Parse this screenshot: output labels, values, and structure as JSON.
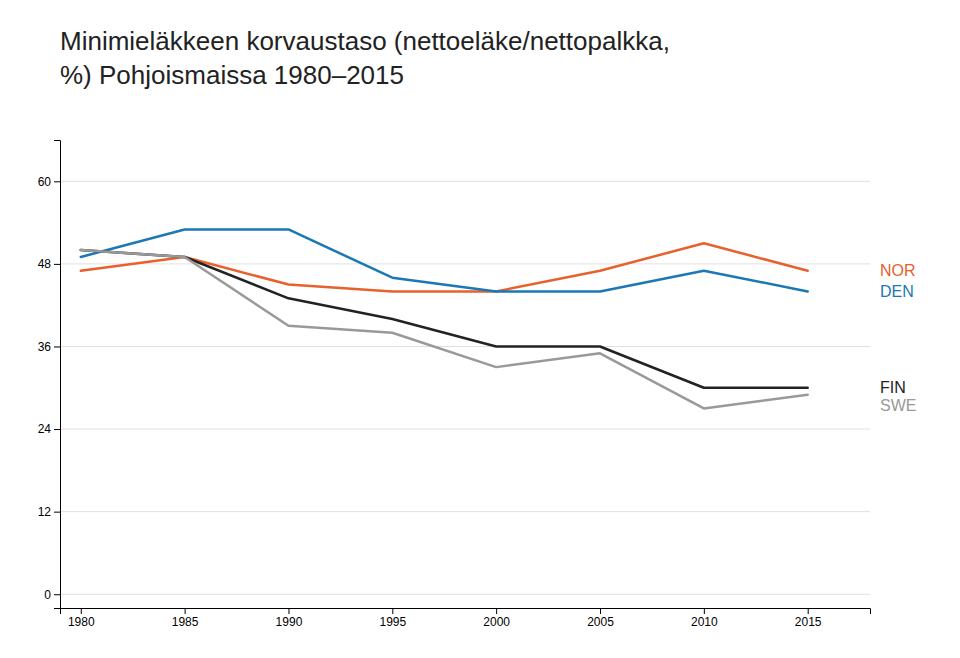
{
  "chart_data": {
    "type": "line",
    "title": "Minimieläkkeen korvaustaso (nettoeläke/nettopalkka,\n%) Pohjoismaissa 1980–2015",
    "x": [
      1980,
      1985,
      1990,
      1995,
      2000,
      2005,
      2010,
      2015
    ],
    "series": [
      {
        "name": "NOR",
        "color": "#E8602C",
        "values": [
          47,
          49,
          45,
          44,
          44,
          47,
          51,
          47
        ]
      },
      {
        "name": "DEN",
        "color": "#1B78B4",
        "values": [
          49,
          53,
          53,
          46,
          44,
          44,
          47,
          44
        ]
      },
      {
        "name": "FIN",
        "color": "#222222",
        "values": [
          50,
          49,
          43,
          40,
          36,
          36,
          30,
          30
        ]
      },
      {
        "name": "SWE",
        "color": "#999999",
        "values": [
          50,
          49,
          39,
          38,
          33,
          35,
          27,
          29
        ]
      }
    ],
    "xlim": [
      1979,
      2018
    ],
    "xticks": [
      1980,
      1985,
      1990,
      1995,
      2000,
      2005,
      2010,
      2015
    ],
    "ylim": [
      -2,
      66
    ],
    "yticks": [
      0,
      12,
      24,
      36,
      48,
      60
    ],
    "grid": true
  }
}
